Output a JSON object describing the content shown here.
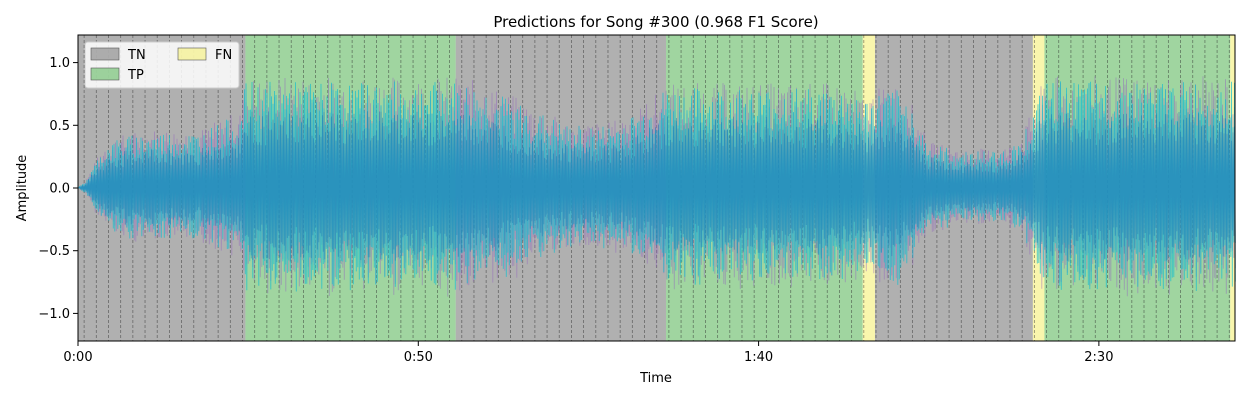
{
  "chart_data": {
    "type": "area",
    "title": "Predictions for Song #300 (0.968 F1 Score)",
    "xlabel": "Time",
    "ylabel": "Amplitude",
    "xlim": [
      0,
      170
    ],
    "ylim": [
      -1.22,
      1.22
    ],
    "x_ticks": [
      {
        "value": 0,
        "label": "0:00"
      },
      {
        "value": 50,
        "label": "0:50"
      },
      {
        "value": 100,
        "label": "1:40"
      },
      {
        "value": 150,
        "label": "2:30"
      }
    ],
    "y_ticks": [
      {
        "value": 1.0,
        "label": "1.0"
      },
      {
        "value": 0.5,
        "label": "0.5"
      },
      {
        "value": 0.0,
        "label": "0.0"
      },
      {
        "value": -0.5,
        "label": "−0.5"
      },
      {
        "value": -1.0,
        "label": "−1.0"
      }
    ],
    "regions": [
      {
        "label": "TN",
        "start": 0.0,
        "end": 24.6
      },
      {
        "label": "TP",
        "start": 24.6,
        "end": 55.5
      },
      {
        "label": "TN",
        "start": 55.5,
        "end": 86.4
      },
      {
        "label": "TP",
        "start": 86.4,
        "end": 115.3
      },
      {
        "label": "FN",
        "start": 115.3,
        "end": 117.1
      },
      {
        "label": "TN",
        "start": 117.1,
        "end": 140.3
      },
      {
        "label": "FN",
        "start": 140.3,
        "end": 142.0
      },
      {
        "label": "TP",
        "start": 142.0,
        "end": 169.3
      },
      {
        "label": "FN",
        "start": 169.3,
        "end": 170.0
      }
    ],
    "region_colors": {
      "TN": "#808080",
      "TP": "#66bb66",
      "FN": "#f5f07a"
    },
    "beat_interval": 1.79,
    "waveform_envelope": {
      "x": [
        0,
        1,
        2,
        4,
        6,
        10,
        14,
        18,
        22,
        24,
        24.6,
        28,
        35,
        45,
        52,
        55.5,
        60,
        66,
        72,
        78,
        82,
        84.5,
        86.4,
        92,
        100,
        108,
        113,
        115.3,
        117.1,
        120,
        122,
        125,
        130,
        135,
        138,
        140.3,
        142,
        150,
        158,
        165,
        170
      ],
      "amp": [
        0.0,
        0.05,
        0.15,
        0.35,
        0.4,
        0.45,
        0.45,
        0.45,
        0.55,
        0.6,
        0.85,
        0.85,
        0.85,
        0.85,
        0.85,
        0.85,
        0.8,
        0.65,
        0.5,
        0.5,
        0.6,
        0.7,
        0.8,
        0.8,
        0.8,
        0.8,
        0.8,
        0.7,
        0.75,
        0.8,
        0.7,
        0.35,
        0.3,
        0.3,
        0.35,
        0.6,
        0.85,
        0.85,
        0.85,
        0.85,
        0.85
      ]
    },
    "legend": {
      "placement": "top-left",
      "entries": [
        {
          "label": "TN",
          "color": "#808080"
        },
        {
          "label": "TP",
          "color": "#66bb66"
        },
        {
          "label": "FN",
          "color": "#f5f07a"
        }
      ]
    },
    "colors": {
      "waveform_primary": "#1f77b4",
      "waveform_harmonic": "#17becf",
      "waveform_percussive": "#9467bd"
    }
  }
}
